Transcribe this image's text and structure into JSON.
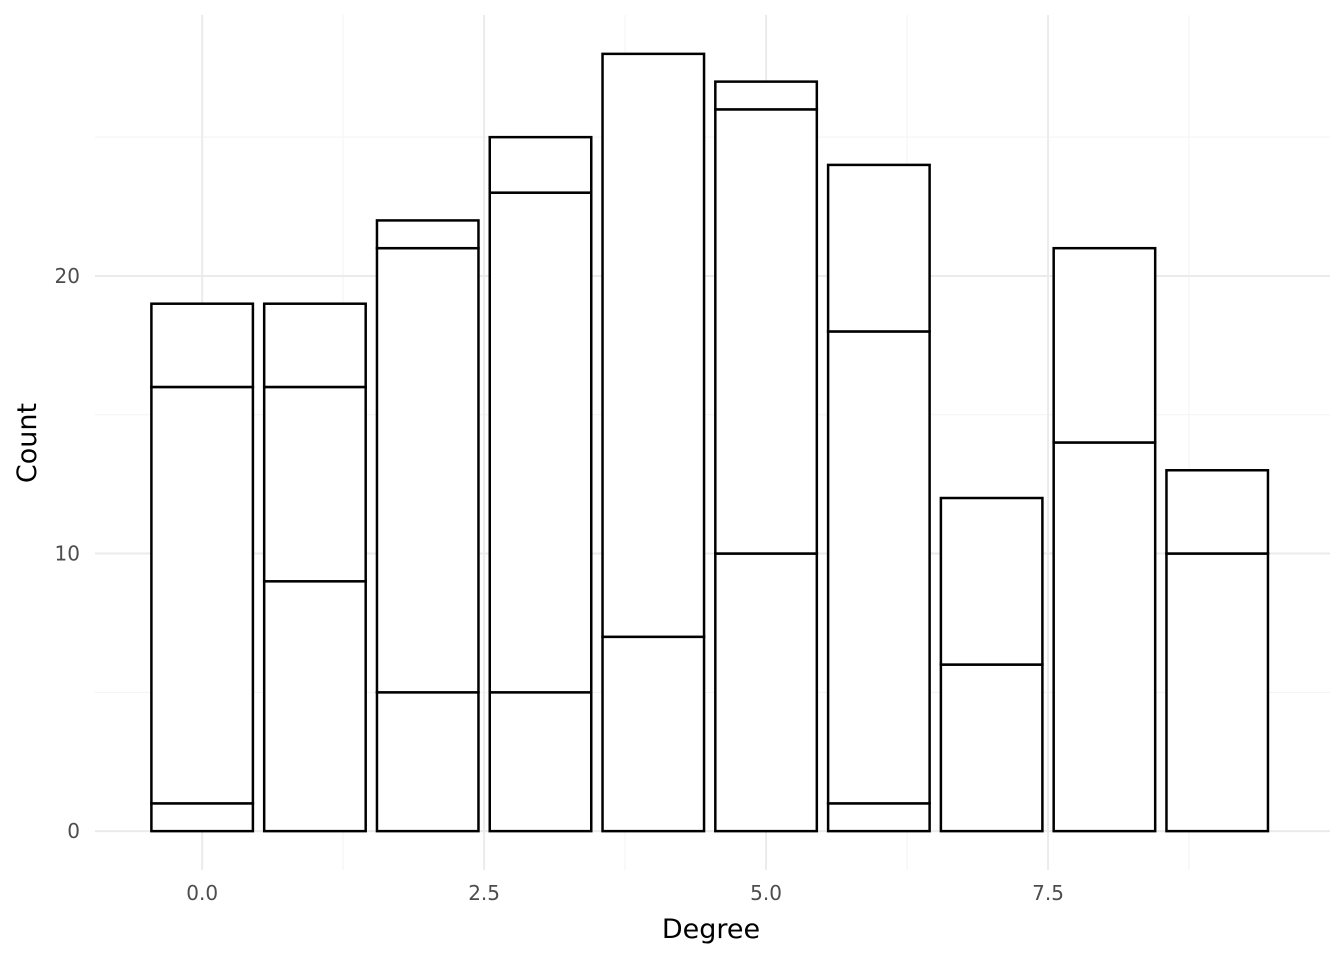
{
  "chart_data": {
    "type": "bar",
    "stacked": true,
    "xlabel": "Degree",
    "ylabel": "Count",
    "x_ticks": [
      "0.0",
      "2.5",
      "5.0",
      "7.5"
    ],
    "x_tick_values": [
      0,
      2.5,
      5,
      7.5
    ],
    "y_ticks": [
      "0",
      "10",
      "20"
    ],
    "y_tick_values": [
      0,
      10,
      20
    ],
    "xlim": [
      -0.95,
      10.0
    ],
    "ylim": [
      -1.4,
      29.4
    ],
    "grid": true,
    "legend": "none",
    "bars": [
      {
        "x": 0,
        "boundaries": [
          0,
          1,
          16,
          19
        ]
      },
      {
        "x": 1,
        "boundaries": [
          0,
          9,
          16,
          19
        ]
      },
      {
        "x": 2,
        "boundaries": [
          0,
          5,
          21,
          22
        ]
      },
      {
        "x": 3,
        "boundaries": [
          0,
          5,
          23,
          25
        ]
      },
      {
        "x": 4,
        "boundaries": [
          0,
          7,
          28
        ]
      },
      {
        "x": 5,
        "boundaries": [
          0,
          10,
          26,
          27
        ]
      },
      {
        "x": 6,
        "boundaries": [
          0,
          1,
          18,
          24
        ]
      },
      {
        "x": 7,
        "boundaries": [
          0,
          6,
          12
        ]
      },
      {
        "x": 8,
        "boundaries": [
          0,
          14,
          21
        ]
      },
      {
        "x": 9,
        "boundaries": [
          0,
          10,
          13
        ]
      }
    ]
  }
}
